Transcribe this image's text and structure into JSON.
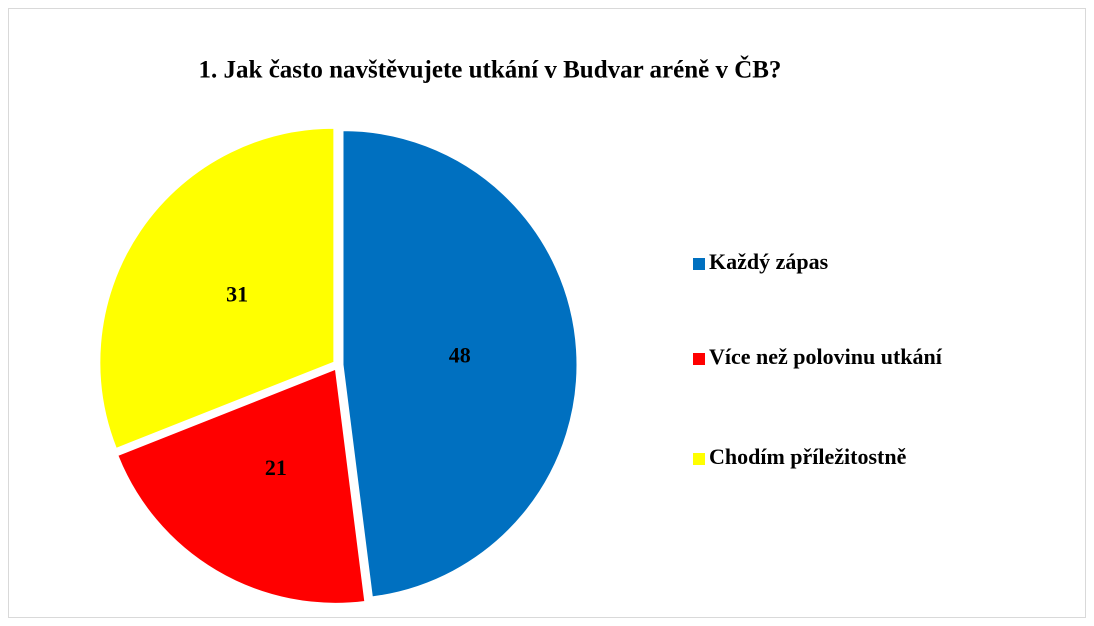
{
  "chart_data": {
    "type": "pie",
    "title": "1. Jak často navštěvujete utkání v Budvar aréně v ČB?",
    "categories": [
      "Každý zápas",
      "Více než polovinu utkání",
      "Chodím příležitostně"
    ],
    "values": [
      48,
      21,
      31
    ],
    "colors": [
      "#0070c0",
      "#ff0000",
      "#ffff00"
    ],
    "legend": "right"
  }
}
